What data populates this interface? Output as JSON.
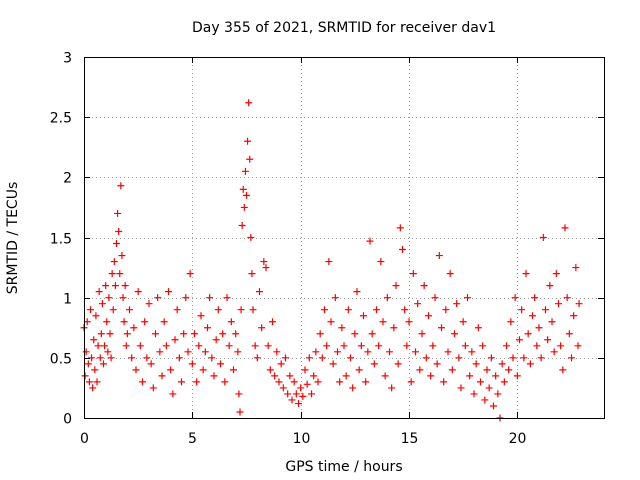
{
  "chart_data": {
    "type": "scatter",
    "title": "Day 355 of 2021, SRMTID for receiver dav1",
    "xlabel": "GPS time / hours",
    "ylabel": "SRMTID / TECUs",
    "xlim": [
      0,
      24
    ],
    "ylim": [
      0,
      3
    ],
    "grid": true,
    "marker": "+",
    "marker_color": "#ff0000",
    "x_ticks": [
      {
        "value": 0,
        "label": "0"
      },
      {
        "value": 5,
        "label": "5"
      },
      {
        "value": 10,
        "label": "10"
      },
      {
        "value": 15,
        "label": "15"
      },
      {
        "value": 20,
        "label": "20"
      }
    ],
    "y_ticks": [
      {
        "value": 0,
        "label": "0"
      },
      {
        "value": 0.5,
        "label": "0.5"
      },
      {
        "value": 1,
        "label": "1"
      },
      {
        "value": 1.5,
        "label": "1.5"
      },
      {
        "value": 2,
        "label": "2"
      },
      {
        "value": 2.5,
        "label": "2.5"
      },
      {
        "value": 3,
        "label": "3"
      }
    ],
    "series": [
      {
        "name": "SRMTID",
        "points": [
          [
            0.0,
            0.75
          ],
          [
            0.05,
            0.35
          ],
          [
            0.1,
            0.55
          ],
          [
            0.15,
            0.8
          ],
          [
            0.2,
            0.45
          ],
          [
            0.25,
            0.3
          ],
          [
            0.3,
            0.9
          ],
          [
            0.35,
            0.5
          ],
          [
            0.4,
            0.25
          ],
          [
            0.45,
            0.65
          ],
          [
            0.5,
            0.4
          ],
          [
            0.55,
            0.85
          ],
          [
            0.6,
            0.3
          ],
          [
            0.65,
            0.6
          ],
          [
            0.7,
            1.05
          ],
          [
            0.75,
            0.5
          ],
          [
            0.8,
            0.7
          ],
          [
            0.85,
            0.95
          ],
          [
            0.9,
            0.45
          ],
          [
            0.95,
            0.6
          ],
          [
            1.0,
            1.1
          ],
          [
            1.05,
            0.8
          ],
          [
            1.1,
            0.55
          ],
          [
            1.15,
            1.0
          ],
          [
            1.2,
            0.7
          ],
          [
            1.25,
            0.5
          ],
          [
            1.3,
            1.2
          ],
          [
            1.35,
            0.9
          ],
          [
            1.4,
            1.3
          ],
          [
            1.45,
            1.1
          ],
          [
            1.5,
            1.45
          ],
          [
            1.55,
            1.7
          ],
          [
            1.6,
            1.55
          ],
          [
            1.65,
            1.2
          ],
          [
            1.7,
            1.93
          ],
          [
            1.75,
            1.35
          ],
          [
            1.8,
            1.0
          ],
          [
            1.85,
            0.8
          ],
          [
            1.9,
            1.1
          ],
          [
            1.95,
            0.6
          ],
          [
            2.0,
            0.7
          ],
          [
            2.1,
            0.9
          ],
          [
            2.2,
            0.5
          ],
          [
            2.3,
            0.75
          ],
          [
            2.4,
            0.4
          ],
          [
            2.5,
            1.05
          ],
          [
            2.6,
            0.6
          ],
          [
            2.7,
            0.3
          ],
          [
            2.8,
            0.8
          ],
          [
            2.9,
            0.5
          ],
          [
            3.0,
            0.95
          ],
          [
            3.1,
            0.45
          ],
          [
            3.2,
            0.25
          ],
          [
            3.3,
            0.7
          ],
          [
            3.4,
            1.0
          ],
          [
            3.5,
            0.55
          ],
          [
            3.6,
            0.35
          ],
          [
            3.7,
            0.8
          ],
          [
            3.8,
            0.6
          ],
          [
            3.9,
            1.05
          ],
          [
            4.0,
            0.4
          ],
          [
            4.1,
            0.2
          ],
          [
            4.2,
            0.65
          ],
          [
            4.3,
            0.9
          ],
          [
            4.4,
            0.5
          ],
          [
            4.5,
            0.3
          ],
          [
            4.6,
            0.7
          ],
          [
            4.7,
            1.0
          ],
          [
            4.8,
            0.55
          ],
          [
            4.9,
            1.2
          ],
          [
            5.0,
            0.45
          ],
          [
            5.1,
            0.7
          ],
          [
            5.2,
            0.3
          ],
          [
            5.3,
            0.6
          ],
          [
            5.4,
            0.85
          ],
          [
            5.5,
            0.4
          ],
          [
            5.6,
            0.55
          ],
          [
            5.7,
            0.75
          ],
          [
            5.8,
            1.0
          ],
          [
            5.9,
            0.5
          ],
          [
            6.0,
            0.35
          ],
          [
            6.1,
            0.65
          ],
          [
            6.2,
            0.9
          ],
          [
            6.3,
            0.45
          ],
          [
            6.4,
            0.7
          ],
          [
            6.5,
            0.3
          ],
          [
            6.6,
            1.0
          ],
          [
            6.7,
            0.6
          ],
          [
            6.8,
            0.8
          ],
          [
            6.9,
            0.4
          ],
          [
            7.0,
            0.7
          ],
          [
            7.1,
            0.55
          ],
          [
            7.15,
            0.2
          ],
          [
            7.2,
            0.05
          ],
          [
            7.25,
            0.9
          ],
          [
            7.3,
            1.6
          ],
          [
            7.35,
            1.9
          ],
          [
            7.4,
            1.75
          ],
          [
            7.45,
            2.05
          ],
          [
            7.5,
            1.85
          ],
          [
            7.55,
            2.3
          ],
          [
            7.6,
            2.62
          ],
          [
            7.65,
            2.15
          ],
          [
            7.7,
            1.5
          ],
          [
            7.75,
            1.2
          ],
          [
            7.8,
            0.9
          ],
          [
            7.9,
            0.6
          ],
          [
            8.0,
            0.5
          ],
          [
            8.1,
            1.05
          ],
          [
            8.2,
            0.75
          ],
          [
            8.3,
            1.3
          ],
          [
            8.4,
            1.25
          ],
          [
            8.5,
            0.6
          ],
          [
            8.6,
            0.4
          ],
          [
            8.7,
            0.8
          ],
          [
            8.8,
            0.35
          ],
          [
            8.9,
            0.55
          ],
          [
            9.0,
            0.3
          ],
          [
            9.1,
            0.45
          ],
          [
            9.2,
            0.25
          ],
          [
            9.3,
            0.5
          ],
          [
            9.4,
            0.2
          ],
          [
            9.5,
            0.35
          ],
          [
            9.6,
            0.15
          ],
          [
            9.7,
            0.3
          ],
          [
            9.8,
            0.2
          ],
          [
            9.9,
            0.12
          ],
          [
            10.0,
            0.25
          ],
          [
            10.1,
            0.18
          ],
          [
            10.2,
            0.4
          ],
          [
            10.3,
            0.28
          ],
          [
            10.4,
            0.5
          ],
          [
            10.5,
            0.2
          ],
          [
            10.6,
            0.35
          ],
          [
            10.7,
            0.55
          ],
          [
            10.8,
            0.3
          ],
          [
            10.9,
            0.7
          ],
          [
            11.0,
            0.5
          ],
          [
            11.1,
            0.9
          ],
          [
            11.2,
            0.6
          ],
          [
            11.3,
            1.3
          ],
          [
            11.4,
            0.8
          ],
          [
            11.5,
            0.45
          ],
          [
            11.6,
            1.0
          ],
          [
            11.7,
            0.55
          ],
          [
            11.8,
            0.3
          ],
          [
            11.9,
            0.75
          ],
          [
            12.0,
            0.6
          ],
          [
            12.1,
            0.35
          ],
          [
            12.2,
            0.9
          ],
          [
            12.3,
            0.5
          ],
          [
            12.4,
            0.25
          ],
          [
            12.5,
            0.7
          ],
          [
            12.6,
            1.05
          ],
          [
            12.7,
            0.4
          ],
          [
            12.8,
            0.6
          ],
          [
            12.9,
            0.85
          ],
          [
            13.0,
            0.3
          ],
          [
            13.1,
            0.55
          ],
          [
            13.2,
            1.47
          ],
          [
            13.3,
            0.7
          ],
          [
            13.4,
            0.45
          ],
          [
            13.5,
            0.9
          ],
          [
            13.6,
            0.6
          ],
          [
            13.7,
            1.3
          ],
          [
            13.8,
            0.8
          ],
          [
            13.9,
            0.35
          ],
          [
            14.0,
            1.0
          ],
          [
            14.1,
            0.55
          ],
          [
            14.2,
            0.25
          ],
          [
            14.3,
            0.75
          ],
          [
            14.4,
            1.1
          ],
          [
            14.5,
            0.45
          ],
          [
            14.6,
            1.58
          ],
          [
            14.7,
            1.4
          ],
          [
            14.8,
            0.9
          ],
          [
            14.9,
            0.6
          ],
          [
            15.0,
            0.8
          ],
          [
            15.1,
            0.3
          ],
          [
            15.2,
            1.2
          ],
          [
            15.3,
            0.55
          ],
          [
            15.4,
            0.95
          ],
          [
            15.5,
            0.4
          ],
          [
            15.6,
            0.7
          ],
          [
            15.7,
            1.1
          ],
          [
            15.8,
            0.5
          ],
          [
            15.9,
            0.85
          ],
          [
            16.0,
            0.35
          ],
          [
            16.1,
            0.6
          ],
          [
            16.2,
            1.0
          ],
          [
            16.3,
            0.45
          ],
          [
            16.4,
            1.35
          ],
          [
            16.5,
            0.75
          ],
          [
            16.6,
            0.3
          ],
          [
            16.7,
            0.9
          ],
          [
            16.8,
            0.55
          ],
          [
            16.9,
            1.2
          ],
          [
            17.0,
            0.4
          ],
          [
            17.1,
            0.7
          ],
          [
            17.2,
            0.95
          ],
          [
            17.3,
            0.5
          ],
          [
            17.4,
            0.25
          ],
          [
            17.5,
            0.8
          ],
          [
            17.6,
            0.6
          ],
          [
            17.7,
            1.0
          ],
          [
            17.8,
            0.35
          ],
          [
            17.9,
            0.55
          ],
          [
            18.0,
            0.2
          ],
          [
            18.1,
            0.45
          ],
          [
            18.2,
            0.75
          ],
          [
            18.3,
            0.3
          ],
          [
            18.4,
            0.6
          ],
          [
            18.5,
            0.15
          ],
          [
            18.6,
            0.4
          ],
          [
            18.7,
            0.25
          ],
          [
            18.8,
            0.5
          ],
          [
            18.9,
            0.1
          ],
          [
            19.0,
            0.35
          ],
          [
            19.1,
            0.2
          ],
          [
            19.2,
            0.0
          ],
          [
            19.3,
            0.45
          ],
          [
            19.4,
            0.3
          ],
          [
            19.5,
            0.6
          ],
          [
            19.6,
            0.4
          ],
          [
            19.7,
            0.8
          ],
          [
            19.8,
            0.5
          ],
          [
            19.9,
            1.0
          ],
          [
            20.0,
            0.35
          ],
          [
            20.1,
            0.65
          ],
          [
            20.2,
            0.9
          ],
          [
            20.3,
            0.5
          ],
          [
            20.4,
            1.2
          ],
          [
            20.5,
            0.7
          ],
          [
            20.6,
            0.45
          ],
          [
            20.7,
            0.85
          ],
          [
            20.8,
            1.0
          ],
          [
            20.9,
            0.6
          ],
          [
            21.0,
            0.75
          ],
          [
            21.1,
            0.5
          ],
          [
            21.2,
            1.5
          ],
          [
            21.3,
            0.9
          ],
          [
            21.4,
            0.65
          ],
          [
            21.5,
            1.1
          ],
          [
            21.6,
            0.8
          ],
          [
            21.7,
            0.55
          ],
          [
            21.8,
            1.2
          ],
          [
            21.9,
            0.95
          ],
          [
            22.0,
            0.6
          ],
          [
            22.1,
            0.4
          ],
          [
            22.2,
            1.58
          ],
          [
            22.3,
            1.0
          ],
          [
            22.4,
            0.7
          ],
          [
            22.5,
            0.5
          ],
          [
            22.6,
            0.85
          ],
          [
            22.7,
            1.25
          ],
          [
            22.8,
            0.6
          ],
          [
            22.85,
            0.95
          ]
        ]
      }
    ]
  }
}
